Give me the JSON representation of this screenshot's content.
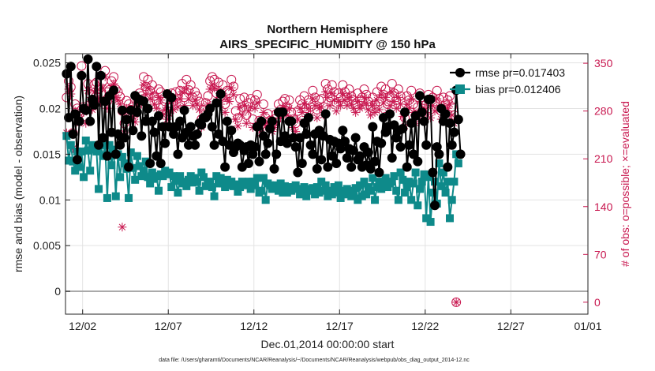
{
  "chart_data": {
    "type": "line",
    "title": "Northern Hemisphere",
    "subtitle": "AIRS_SPECIFIC_HUMIDITY @ 150 hPa",
    "xlabel": "Dec.01,2014 00:00:00 start",
    "ylabel": "rmse and bias (model - observation)",
    "ylabel_right": "# of obs: o=possible; ×=evaluated",
    "footnote": "data file: /Users/gharamti/Documents/NCAR/Reanalysis/~/Documents/NCAR/Reanalysis/webpub/obs_diag_output_2014-12.nc",
    "xlim": [
      0.5,
      31.0
    ],
    "ylim": [
      -0.0025,
      0.026
    ],
    "ylim_right": [
      -17.5,
      364
    ],
    "x_ticks": [
      1.5,
      6.5,
      11.5,
      16.5,
      21.5,
      26.5,
      31.0
    ],
    "x_tick_labels": [
      "12/02",
      "12/07",
      "12/12",
      "12/17",
      "12/22",
      "12/27",
      "01/01"
    ],
    "y_ticks": [
      0,
      0.005,
      0.01,
      0.015,
      0.02,
      0.025
    ],
    "y_tick_labels": [
      "0",
      "0.005",
      "0.01",
      "0.015",
      "0.02",
      "0.025"
    ],
    "y_right_ticks": [
      0,
      70,
      140,
      210,
      280,
      350
    ],
    "y_right_tick_labels": [
      "0",
      "70",
      "140",
      "210",
      "280",
      "350"
    ],
    "grid": true,
    "legend_position": "top-right",
    "time_step_days": 0.125,
    "x_start": 0.5625,
    "colors": {
      "rmse": "#000000",
      "bias": "#0e8a8a",
      "obs": "#c8174f",
      "zero_line": "#aaaaaa",
      "grid": "#e3e3e3"
    },
    "series": [
      {
        "name": "rmse pr=0.017403",
        "axis": "left",
        "marker": "circle",
        "values": [
          0.0238,
          0.019,
          0.0246,
          0.0172,
          0.0194,
          0.0144,
          0.0186,
          0.0236,
          0.02,
          0.0198,
          0.0254,
          0.0186,
          0.021,
          0.0204,
          0.0246,
          0.016,
          0.0236,
          0.0168,
          0.0208,
          0.0148,
          0.0214,
          0.0174,
          0.022,
          0.015,
          0.0172,
          0.016,
          0.0198,
          0.0168,
          0.0188,
          0.0136,
          0.0198,
          0.0176,
          0.0214,
          0.0196,
          0.021,
          0.017,
          0.0208,
          0.0186,
          0.02,
          0.014,
          0.0186,
          0.0174,
          0.0148,
          0.0192,
          0.014,
          0.018,
          0.0162,
          0.0216,
          0.018,
          0.0212,
          0.0172,
          0.018,
          0.015,
          0.0186,
          0.0168,
          0.0198,
          0.0174,
          0.016,
          0.018,
          0.017,
          0.016,
          0.0172,
          0.0184,
          0.0182,
          0.019,
          0.019,
          0.0194,
          0.02,
          0.018,
          0.016,
          0.0206,
          0.0172,
          0.0216,
          0.0164,
          0.0136,
          0.0186,
          0.016,
          0.0176,
          0.0152,
          0.0158,
          0.0162,
          0.016,
          0.0136,
          0.0154,
          0.0158,
          0.014,
          0.016,
          0.015,
          0.0158,
          0.018,
          0.0142,
          0.0186,
          0.017,
          0.015,
          0.0162,
          0.0178,
          0.0186,
          0.0134,
          0.015,
          0.0196,
          0.0164,
          0.0196,
          0.017,
          0.0162,
          0.0186,
          0.0186,
          0.0168,
          0.0158,
          0.013,
          0.0168,
          0.014,
          0.0184,
          0.0172,
          0.019,
          0.016,
          0.015,
          0.0172,
          0.0134,
          0.0176,
          0.0144,
          0.017,
          0.0194,
          0.0136,
          0.0166,
          0.0148,
          0.0164,
          0.014,
          0.0162,
          0.0156,
          0.0176,
          0.0164,
          0.0146,
          0.0156,
          0.0136,
          0.0154,
          0.0168,
          0.0144,
          0.0148,
          0.0136,
          0.0158,
          0.0138,
          0.0152,
          0.0134,
          0.018,
          0.0142,
          0.0164,
          0.013,
          0.0162,
          0.019,
          0.0174,
          0.018,
          0.0194,
          0.0146,
          0.0182,
          0.0168,
          0.0176,
          0.0158,
          0.0178,
          0.0196,
          0.0136,
          0.016,
          0.0184,
          0.015,
          0.0192,
          0.0142,
          0.0214,
          0.0196,
          0.0186,
          0.016,
          0.021,
          0.021,
          0.013,
          0.0094,
          0.0158,
          0.015,
          0.02,
          0.0186,
          0.0194,
          0.0136,
          0.0184,
          0.016,
          0.0174,
          0.022,
          0.0188,
          0.015
        ]
      },
      {
        "name": "bias pr=0.012406",
        "axis": "left",
        "marker": "square",
        "values": [
          0.017,
          0.0143,
          0.016,
          0.0142,
          0.0132,
          0.0153,
          0.0136,
          0.0153,
          0.0125,
          0.0165,
          0.0154,
          0.0132,
          0.016,
          0.0155,
          0.0153,
          0.0112,
          0.016,
          0.0148,
          0.016,
          0.0102,
          0.016,
          0.0138,
          0.0155,
          0.0104,
          0.015,
          0.0125,
          0.0147,
          0.014,
          0.0134,
          0.0102,
          0.0152,
          0.0135,
          0.0122,
          0.0148,
          0.0137,
          0.0126,
          0.0132,
          0.0142,
          0.0125,
          0.0118,
          0.013,
          0.0123,
          0.0126,
          0.011,
          0.0128,
          0.0126,
          0.0132,
          0.0128,
          0.013,
          0.0114,
          0.0126,
          0.0121,
          0.0108,
          0.0126,
          0.0118,
          0.012,
          0.0115,
          0.0122,
          0.0126,
          0.0119,
          0.0124,
          0.012,
          0.011,
          0.013,
          0.0125,
          0.0115,
          0.0118,
          0.012,
          0.0114,
          0.0104,
          0.0126,
          0.0118,
          0.0124,
          0.0118,
          0.0114,
          0.0122,
          0.0116,
          0.012,
          0.0115,
          0.0117,
          0.0109,
          0.0114,
          0.012,
          0.0116,
          0.0118,
          0.012,
          0.0112,
          0.012,
          0.0116,
          0.0124,
          0.0108,
          0.011,
          0.0124,
          0.01,
          0.0118,
          0.0116,
          0.0112,
          0.0114,
          0.0116,
          0.011,
          0.0118,
          0.0108,
          0.0115,
          0.0108,
          0.0114,
          0.011,
          0.0114,
          0.0116,
          0.0112,
          0.0106,
          0.0112,
          0.0114,
          0.0104,
          0.0112,
          0.011,
          0.0113,
          0.0106,
          0.0114,
          0.0108,
          0.012,
          0.011,
          0.0116,
          0.0104,
          0.011,
          0.0106,
          0.0114,
          0.0108,
          0.0116,
          0.0102,
          0.011,
          0.0106,
          0.0112,
          0.011,
          0.0104,
          0.0108,
          0.0113,
          0.01,
          0.0116,
          0.0104,
          0.012,
          0.0106,
          0.0114,
          0.011,
          0.0124,
          0.01,
          0.0114,
          0.012,
          0.0112,
          0.012,
          0.0124,
          0.0114,
          0.0118,
          0.012,
          0.0126,
          0.011,
          0.01,
          0.013,
          0.0122,
          0.0108,
          0.0114,
          0.012,
          0.01,
          0.0118,
          0.013,
          0.0094,
          0.0112,
          0.012,
          0.0128,
          0.008,
          0.0125,
          0.0076,
          0.0108,
          0.012,
          0.0096,
          0.014,
          0.0115,
          0.013,
          0.0108,
          0.012,
          0.008,
          0.01,
          0.012,
          0.015,
          0.014
        ]
      },
      {
        "name": "obs possible",
        "axis": "right",
        "marker": "open-circle",
        "values": [
          300,
          324,
          315,
          248,
          290,
          284,
          276,
          346,
          286,
          272,
          320,
          305,
          296,
          319,
          322,
          312,
          306,
          324,
          339,
          294,
          311,
          324,
          330,
          312,
          308,
          301,
          280,
          262,
          295,
          290,
          282,
          286,
          276,
          298,
          306,
          302,
          330,
          316,
          326,
          310,
          318,
          302,
          296,
          312,
          308,
          286,
          294,
          280,
          288,
          306,
          294,
          308,
          298,
          310,
          320,
          300,
          326,
          311,
          318,
          300,
          308,
          302,
          294,
          268,
          282,
          292,
          302,
          324,
          330,
          326,
          306,
          322,
          302,
          318,
          290,
          310,
          306,
          326,
          316,
          280,
          270,
          298,
          286,
          300,
          274,
          292,
          298,
          268,
          296,
          304,
          266,
          260,
          290,
          270,
          276,
          266,
          262,
          268,
          276,
          290,
          282,
          294,
          298,
          286,
          296,
          278,
          268,
          262,
          280,
          296,
          290,
          302,
          284,
          296,
          286,
          310,
          300,
          282,
          296,
          298,
          286,
          320,
          312,
          300,
          318,
          308,
          292,
          306,
          300,
          318,
          308,
          300,
          312,
          302,
          296,
          290,
          306,
          296,
          300,
          312,
          304,
          294,
          286,
          300,
          290,
          308,
          294,
          316,
          304,
          312,
          290,
          300,
          320,
          306,
          296,
          312,
          302,
          284,
          270,
          302,
          296,
          310,
          290,
          274,
          286,
          306,
          280,
          296,
          290,
          304,
          282,
          300,
          292,
          310,
          298,
          280,
          300,
          290,
          296,
          302,
          286,
          274,
          0
        ]
      },
      {
        "name": "obs evaluated",
        "axis": "right",
        "marker": "asterisk",
        "values": [
          248,
          312,
          305,
          225,
          280,
          270,
          262,
          332,
          278,
          262,
          310,
          290,
          282,
          308,
          310,
          298,
          292,
          314,
          330,
          284,
          298,
          314,
          320,
          300,
          296,
          290,
          110,
          248,
          284,
          278,
          270,
          272,
          264,
          286,
          294,
          290,
          318,
          304,
          314,
          298,
          306,
          290,
          284,
          300,
          296,
          274,
          282,
          268,
          276,
          294,
          282,
          296,
          286,
          298,
          308,
          288,
          312,
          298,
          306,
          288,
          296,
          290,
          282,
          256,
          270,
          280,
          290,
          312,
          318,
          314,
          294,
          310,
          290,
          306,
          278,
          298,
          294,
          314,
          304,
          268,
          258,
          286,
          274,
          288,
          262,
          280,
          286,
          256,
          284,
          292,
          254,
          248,
          278,
          258,
          264,
          254,
          250,
          256,
          264,
          278,
          270,
          282,
          286,
          274,
          284,
          266,
          256,
          250,
          268,
          284,
          278,
          290,
          272,
          284,
          274,
          298,
          288,
          270,
          284,
          286,
          274,
          308,
          300,
          288,
          306,
          296,
          280,
          294,
          288,
          306,
          296,
          288,
          300,
          290,
          284,
          278,
          294,
          284,
          288,
          300,
          292,
          282,
          274,
          288,
          278,
          296,
          282,
          304,
          292,
          300,
          278,
          288,
          308,
          294,
          284,
          300,
          290,
          272,
          258,
          290,
          284,
          298,
          278,
          262,
          274,
          294,
          268,
          284,
          278,
          292,
          270,
          288,
          280,
          298,
          286,
          268,
          288,
          278,
          284,
          290,
          274,
          262,
          0
        ]
      }
    ]
  }
}
